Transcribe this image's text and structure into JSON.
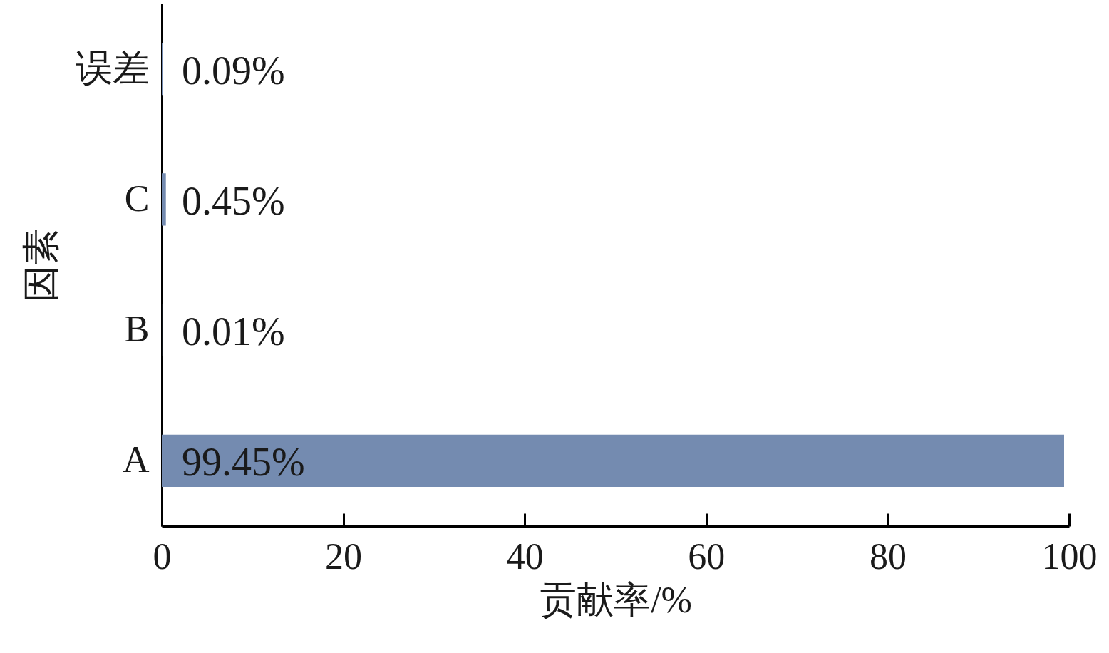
{
  "chart_data": {
    "type": "bar",
    "orientation": "horizontal",
    "categories": [
      "误差",
      "C",
      "B",
      "A"
    ],
    "values": [
      0.09,
      0.45,
      0.01,
      99.45
    ],
    "value_labels": [
      "0.09%",
      "0.45%",
      "0.01%",
      "99.45%"
    ],
    "color": "#748bb0",
    "xlabel": "贡献率/%",
    "ylabel": "因素",
    "xlim": [
      0,
      100
    ],
    "xticks": [
      0,
      20,
      40,
      60,
      80,
      100
    ],
    "grid": false
  }
}
